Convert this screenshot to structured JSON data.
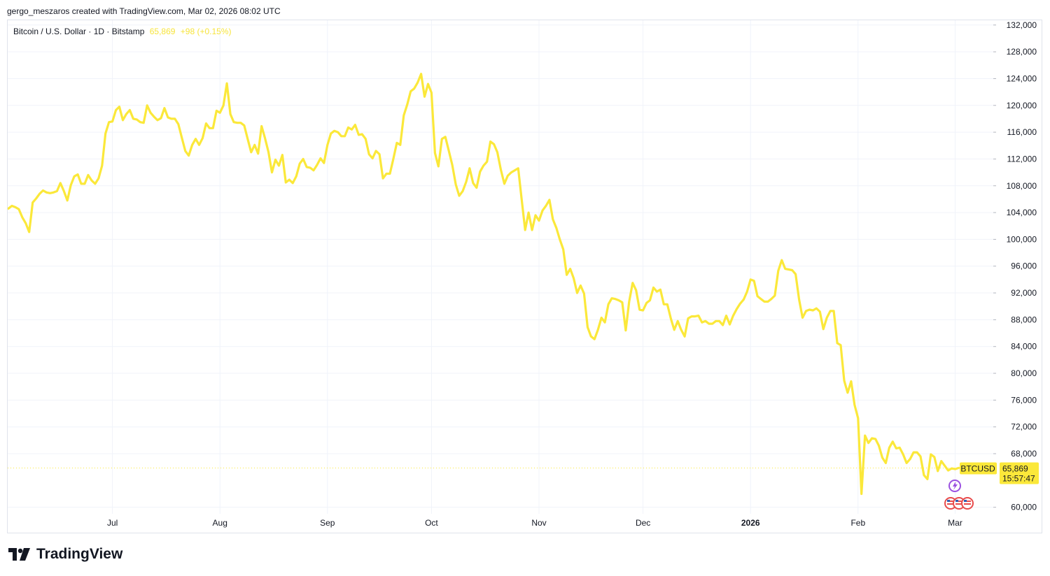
{
  "header": {
    "attribution": "gergo_meszaros created with TradingView.com, Mar 02, 2026 08:02 UTC"
  },
  "legend": {
    "symbol": "Bitcoin / U.S. Dollar · 1D · Bitstamp",
    "last": "65,869",
    "change": "+98 (+0.15%)"
  },
  "price_tag": {
    "ticker": "BTCUSD",
    "price": "65,869",
    "countdown": "15:57:47"
  },
  "brand": {
    "name": "TradingView"
  },
  "colors": {
    "line": "#fbe83a",
    "grid": "#f0f3fa",
    "tag_bg": "#fbe83a"
  },
  "chart_data": {
    "type": "line",
    "series_color": "#fbe83a",
    "ylim": [
      56000,
      132500
    ],
    "xlim": [
      "2025-06-01",
      "2026-03-12"
    ],
    "y_ticks": [
      "132,000",
      "128,000",
      "124,000",
      "120,000",
      "116,000",
      "112,000",
      "108,000",
      "104,000",
      "100,000",
      "96,000",
      "92,000",
      "88,000",
      "84,000",
      "80,000",
      "76,000",
      "72,000",
      "68,000",
      "60,000"
    ],
    "x_ticks": [
      {
        "date": "2025-07-01",
        "label": "Jul"
      },
      {
        "date": "2025-08-01",
        "label": "Aug"
      },
      {
        "date": "2025-09-01",
        "label": "Sep"
      },
      {
        "date": "2025-10-01",
        "label": "Oct"
      },
      {
        "date": "2025-11-01",
        "label": "Nov"
      },
      {
        "date": "2025-12-01",
        "label": "Dec"
      },
      {
        "date": "2026-01-01",
        "label": "2026"
      },
      {
        "date": "2026-02-01",
        "label": "Feb"
      },
      {
        "date": "2026-03-01",
        "label": "Mar"
      }
    ],
    "last_value": 65869,
    "points": [
      [
        "2025-06-01",
        104600
      ],
      [
        "2025-06-02",
        105000
      ],
      [
        "2025-06-03",
        104800
      ],
      [
        "2025-06-04",
        104500
      ],
      [
        "2025-06-05",
        103300
      ],
      [
        "2025-06-06",
        102400
      ],
      [
        "2025-06-07",
        101100
      ],
      [
        "2025-06-08",
        105500
      ],
      [
        "2025-06-09",
        106100
      ],
      [
        "2025-06-10",
        106800
      ],
      [
        "2025-06-11",
        107300
      ],
      [
        "2025-06-12",
        107000
      ],
      [
        "2025-06-13",
        106900
      ],
      [
        "2025-06-14",
        107000
      ],
      [
        "2025-06-15",
        107200
      ],
      [
        "2025-06-16",
        108400
      ],
      [
        "2025-06-17",
        107200
      ],
      [
        "2025-06-18",
        105800
      ],
      [
        "2025-06-19",
        108100
      ],
      [
        "2025-06-20",
        109400
      ],
      [
        "2025-06-21",
        109700
      ],
      [
        "2025-06-22",
        108300
      ],
      [
        "2025-06-23",
        108300
      ],
      [
        "2025-06-24",
        109600
      ],
      [
        "2025-06-25",
        108800
      ],
      [
        "2025-06-26",
        108300
      ],
      [
        "2025-06-27",
        109100
      ],
      [
        "2025-06-28",
        111000
      ],
      [
        "2025-06-29",
        115800
      ],
      [
        "2025-06-30",
        117500
      ],
      [
        "2025-07-01",
        117600
      ],
      [
        "2025-07-02",
        119300
      ],
      [
        "2025-07-03",
        119800
      ],
      [
        "2025-07-04",
        117800
      ],
      [
        "2025-07-05",
        118700
      ],
      [
        "2025-07-06",
        119300
      ],
      [
        "2025-07-07",
        118000
      ],
      [
        "2025-07-08",
        117900
      ],
      [
        "2025-07-09",
        117500
      ],
      [
        "2025-07-10",
        117400
      ],
      [
        "2025-07-11",
        120000
      ],
      [
        "2025-07-12",
        118900
      ],
      [
        "2025-07-13",
        118300
      ],
      [
        "2025-07-14",
        117800
      ],
      [
        "2025-07-15",
        118100
      ],
      [
        "2025-07-16",
        119600
      ],
      [
        "2025-07-17",
        118200
      ],
      [
        "2025-07-18",
        118000
      ],
      [
        "2025-07-19",
        118000
      ],
      [
        "2025-07-20",
        117200
      ],
      [
        "2025-07-21",
        115200
      ],
      [
        "2025-07-22",
        113200
      ],
      [
        "2025-07-23",
        112500
      ],
      [
        "2025-07-24",
        114100
      ],
      [
        "2025-07-25",
        115000
      ],
      [
        "2025-07-26",
        114100
      ],
      [
        "2025-07-27",
        115100
      ],
      [
        "2025-07-28",
        117300
      ],
      [
        "2025-07-29",
        116600
      ],
      [
        "2025-07-30",
        116600
      ],
      [
        "2025-07-31",
        119200
      ],
      [
        "2025-08-01",
        118900
      ],
      [
        "2025-08-02",
        120000
      ],
      [
        "2025-08-03",
        123300
      ],
      [
        "2025-08-04",
        118700
      ],
      [
        "2025-08-05",
        117500
      ],
      [
        "2025-08-06",
        117400
      ],
      [
        "2025-08-07",
        117400
      ],
      [
        "2025-08-08",
        117000
      ],
      [
        "2025-08-09",
        115000
      ],
      [
        "2025-08-10",
        113000
      ],
      [
        "2025-08-11",
        114100
      ],
      [
        "2025-08-12",
        112800
      ],
      [
        "2025-08-13",
        116900
      ],
      [
        "2025-08-14",
        115100
      ],
      [
        "2025-08-15",
        113000
      ],
      [
        "2025-08-16",
        110000
      ],
      [
        "2025-08-17",
        111900
      ],
      [
        "2025-08-18",
        111000
      ],
      [
        "2025-08-19",
        112600
      ],
      [
        "2025-08-20",
        108500
      ],
      [
        "2025-08-21",
        108900
      ],
      [
        "2025-08-22",
        108400
      ],
      [
        "2025-08-23",
        109400
      ],
      [
        "2025-08-24",
        111300
      ],
      [
        "2025-08-25",
        112000
      ],
      [
        "2025-08-26",
        110800
      ],
      [
        "2025-08-27",
        110700
      ],
      [
        "2025-08-28",
        110300
      ],
      [
        "2025-08-29",
        111100
      ],
      [
        "2025-08-30",
        112100
      ],
      [
        "2025-08-31",
        111400
      ],
      [
        "2025-09-01",
        114100
      ],
      [
        "2025-09-02",
        115800
      ],
      [
        "2025-09-03",
        116200
      ],
      [
        "2025-09-04",
        116000
      ],
      [
        "2025-09-05",
        115400
      ],
      [
        "2025-09-06",
        115400
      ],
      [
        "2025-09-07",
        116700
      ],
      [
        "2025-09-08",
        116400
      ],
      [
        "2025-09-09",
        117100
      ],
      [
        "2025-09-10",
        115600
      ],
      [
        "2025-09-11",
        115700
      ],
      [
        "2025-09-12",
        115000
      ],
      [
        "2025-09-13",
        112700
      ],
      [
        "2025-09-14",
        112100
      ],
      [
        "2025-09-15",
        113200
      ],
      [
        "2025-09-16",
        112700
      ],
      [
        "2025-09-17",
        109100
      ],
      [
        "2025-09-18",
        109800
      ],
      [
        "2025-09-19",
        109800
      ],
      [
        "2025-09-20",
        112000
      ],
      [
        "2025-09-21",
        114400
      ],
      [
        "2025-09-22",
        114100
      ],
      [
        "2025-09-23",
        118500
      ],
      [
        "2025-09-24",
        120100
      ],
      [
        "2025-09-25",
        122100
      ],
      [
        "2025-09-26",
        122500
      ],
      [
        "2025-09-27",
        123400
      ],
      [
        "2025-09-28",
        124700
      ],
      [
        "2025-09-29",
        121300
      ],
      [
        "2025-09-30",
        123200
      ],
      [
        "2025-10-01",
        121900
      ],
      [
        "2025-10-02",
        112900
      ],
      [
        "2025-10-03",
        110900
      ],
      [
        "2025-10-04",
        115000
      ],
      [
        "2025-10-05",
        115300
      ],
      [
        "2025-10-06",
        113200
      ],
      [
        "2025-10-07",
        111100
      ],
      [
        "2025-10-08",
        108200
      ],
      [
        "2025-10-09",
        106500
      ],
      [
        "2025-10-10",
        107200
      ],
      [
        "2025-10-11",
        108600
      ],
      [
        "2025-10-12",
        110600
      ],
      [
        "2025-10-13",
        108400
      ],
      [
        "2025-10-14",
        107700
      ],
      [
        "2025-10-15",
        110100
      ],
      [
        "2025-10-16",
        111000
      ],
      [
        "2025-10-17",
        111600
      ],
      [
        "2025-10-18",
        114600
      ],
      [
        "2025-10-19",
        114200
      ],
      [
        "2025-10-20",
        113000
      ],
      [
        "2025-10-21",
        110400
      ],
      [
        "2025-10-22",
        108300
      ],
      [
        "2025-10-23",
        109500
      ],
      [
        "2025-10-24",
        110000
      ],
      [
        "2025-10-25",
        110300
      ],
      [
        "2025-10-26",
        110600
      ],
      [
        "2025-10-27",
        106000
      ],
      [
        "2025-10-28",
        101400
      ],
      [
        "2025-10-29",
        104000
      ],
      [
        "2025-10-30",
        101400
      ],
      [
        "2025-10-31",
        103600
      ],
      [
        "2025-11-01",
        102800
      ],
      [
        "2025-11-02",
        104300
      ],
      [
        "2025-11-03",
        105000
      ],
      [
        "2025-11-04",
        105900
      ],
      [
        "2025-11-05",
        103000
      ],
      [
        "2025-11-06",
        101700
      ],
      [
        "2025-11-07",
        100000
      ],
      [
        "2025-11-08",
        98500
      ],
      [
        "2025-11-09",
        94700
      ],
      [
        "2025-11-10",
        95600
      ],
      [
        "2025-11-11",
        94200
      ],
      [
        "2025-11-12",
        92000
      ],
      [
        "2025-11-13",
        93100
      ],
      [
        "2025-11-14",
        91900
      ],
      [
        "2025-11-15",
        86900
      ],
      [
        "2025-11-16",
        85500
      ],
      [
        "2025-11-17",
        85100
      ],
      [
        "2025-11-18",
        86500
      ],
      [
        "2025-11-19",
        88300
      ],
      [
        "2025-11-20",
        87600
      ],
      [
        "2025-11-21",
        90300
      ],
      [
        "2025-11-22",
        91200
      ],
      [
        "2025-11-23",
        91100
      ],
      [
        "2025-11-24",
        90900
      ],
      [
        "2025-11-25",
        90600
      ],
      [
        "2025-11-26",
        86400
      ],
      [
        "2025-11-27",
        90700
      ],
      [
        "2025-11-28",
        93500
      ],
      [
        "2025-11-29",
        92400
      ],
      [
        "2025-11-30",
        89500
      ],
      [
        "2025-12-01",
        89400
      ],
      [
        "2025-12-02",
        90500
      ],
      [
        "2025-12-03",
        90900
      ],
      [
        "2025-12-04",
        92800
      ],
      [
        "2025-12-05",
        92200
      ],
      [
        "2025-12-06",
        92500
      ],
      [
        "2025-12-07",
        90300
      ],
      [
        "2025-12-08",
        90300
      ],
      [
        "2025-12-09",
        88200
      ],
      [
        "2025-12-10",
        86500
      ],
      [
        "2025-12-11",
        87800
      ],
      [
        "2025-12-12",
        86500
      ],
      [
        "2025-12-13",
        85500
      ],
      [
        "2025-12-14",
        88200
      ],
      [
        "2025-12-15",
        88500
      ],
      [
        "2025-12-16",
        88500
      ],
      [
        "2025-12-17",
        88600
      ],
      [
        "2025-12-18",
        87600
      ],
      [
        "2025-12-19",
        87800
      ],
      [
        "2025-12-20",
        87400
      ],
      [
        "2025-12-21",
        87400
      ],
      [
        "2025-12-22",
        87800
      ],
      [
        "2025-12-23",
        87800
      ],
      [
        "2025-12-24",
        87200
      ],
      [
        "2025-12-25",
        88600
      ],
      [
        "2025-12-26",
        87300
      ],
      [
        "2025-12-27",
        88600
      ],
      [
        "2025-12-28",
        89600
      ],
      [
        "2025-12-29",
        90400
      ],
      [
        "2025-12-30",
        91000
      ],
      [
        "2025-12-31",
        92200
      ],
      [
        "2026-01-01",
        94000
      ],
      [
        "2026-01-02",
        93800
      ],
      [
        "2026-01-03",
        91500
      ],
      [
        "2026-01-04",
        91100
      ],
      [
        "2026-01-05",
        90700
      ],
      [
        "2026-01-06",
        90700
      ],
      [
        "2026-01-07",
        91100
      ],
      [
        "2026-01-08",
        91600
      ],
      [
        "2026-01-09",
        95300
      ],
      [
        "2026-01-10",
        96900
      ],
      [
        "2026-01-11",
        95600
      ],
      [
        "2026-01-12",
        95500
      ],
      [
        "2026-01-13",
        95400
      ],
      [
        "2026-01-14",
        94800
      ],
      [
        "2026-01-15",
        91000
      ],
      [
        "2026-01-16",
        88300
      ],
      [
        "2026-01-17",
        89300
      ],
      [
        "2026-01-18",
        89500
      ],
      [
        "2026-01-19",
        89400
      ],
      [
        "2026-01-20",
        89700
      ],
      [
        "2026-01-21",
        89200
      ],
      [
        "2026-01-22",
        86600
      ],
      [
        "2026-01-23",
        88300
      ],
      [
        "2026-01-24",
        89300
      ],
      [
        "2026-01-25",
        89300
      ],
      [
        "2026-01-26",
        84500
      ],
      [
        "2026-01-27",
        84200
      ],
      [
        "2026-01-28",
        78900
      ],
      [
        "2026-01-29",
        77100
      ],
      [
        "2026-01-30",
        78800
      ],
      [
        "2026-01-31",
        75300
      ],
      [
        "2026-02-01",
        73300
      ],
      [
        "2026-02-02",
        62000
      ],
      [
        "2026-02-03",
        70700
      ],
      [
        "2026-02-04",
        69600
      ],
      [
        "2026-02-05",
        70300
      ],
      [
        "2026-02-06",
        70200
      ],
      [
        "2026-02-07",
        69200
      ],
      [
        "2026-02-08",
        67400
      ],
      [
        "2026-02-09",
        66600
      ],
      [
        "2026-02-10",
        68900
      ],
      [
        "2026-02-11",
        69800
      ],
      [
        "2026-02-12",
        68800
      ],
      [
        "2026-02-13",
        68900
      ],
      [
        "2026-02-14",
        67900
      ],
      [
        "2026-02-15",
        66600
      ],
      [
        "2026-02-16",
        67200
      ],
      [
        "2026-02-17",
        68200
      ],
      [
        "2026-02-18",
        68200
      ],
      [
        "2026-02-19",
        67600
      ],
      [
        "2026-02-20",
        64800
      ],
      [
        "2026-02-21",
        64200
      ],
      [
        "2026-02-22",
        67900
      ],
      [
        "2026-02-23",
        67500
      ],
      [
        "2026-02-24",
        65400
      ],
      [
        "2026-02-25",
        66900
      ],
      [
        "2026-02-26",
        66200
      ],
      [
        "2026-02-27",
        65500
      ],
      [
        "2026-02-28",
        65800
      ],
      [
        "2026-03-01",
        65700
      ],
      [
        "2026-03-02",
        65869
      ]
    ]
  }
}
